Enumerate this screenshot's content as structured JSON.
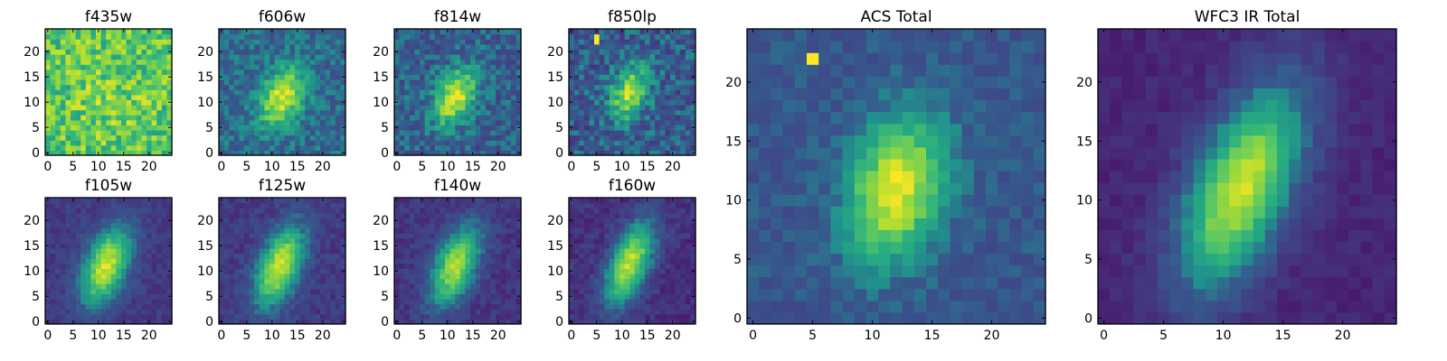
{
  "chart_data": [
    {
      "type": "heatmap",
      "title": "f435w",
      "xlim": [
        0,
        24
      ],
      "ylim": [
        0,
        24
      ],
      "xticks": [
        0,
        5,
        10,
        15,
        20
      ],
      "yticks": [
        0,
        5,
        10,
        15,
        20
      ],
      "xtick_labels": [
        "0",
        "5",
        "10",
        "15",
        "20"
      ],
      "ytick_labels": [
        "0",
        "5",
        "10",
        "15",
        "20"
      ],
      "colormap": "viridis",
      "source": {
        "cx": 12,
        "cy": 11,
        "sx": 8,
        "sy": 8,
        "rho": 0.0,
        "amp": 0.08,
        "bg": 0.72,
        "noise": 0.18,
        "seed": 11
      }
    },
    {
      "type": "heatmap",
      "title": "f606w",
      "xlim": [
        0,
        24
      ],
      "ylim": [
        0,
        24
      ],
      "xticks": [
        0,
        5,
        10,
        15,
        20
      ],
      "yticks": [
        0,
        5,
        10,
        15,
        20
      ],
      "xtick_labels": [
        "0",
        "5",
        "10",
        "15",
        "20"
      ],
      "ytick_labels": [
        "0",
        "5",
        "10",
        "15",
        "20"
      ],
      "colormap": "viridis",
      "source": {
        "cx": 12,
        "cy": 11,
        "sx": 3.2,
        "sy": 4.2,
        "rho": 0.35,
        "amp": 0.55,
        "bg": 0.4,
        "noise": 0.11,
        "seed": 23
      }
    },
    {
      "type": "heatmap",
      "title": "f814w",
      "xlim": [
        0,
        24
      ],
      "ylim": [
        0,
        24
      ],
      "xticks": [
        0,
        5,
        10,
        15,
        20
      ],
      "yticks": [
        0,
        5,
        10,
        15,
        20
      ],
      "xtick_labels": [
        "0",
        "5",
        "10",
        "15",
        "20"
      ],
      "ytick_labels": [
        "0",
        "5",
        "10",
        "15",
        "20"
      ],
      "colormap": "viridis",
      "source": {
        "cx": 11.5,
        "cy": 11,
        "sx": 3.0,
        "sy": 4.0,
        "rho": 0.35,
        "amp": 0.58,
        "bg": 0.36,
        "noise": 0.13,
        "seed": 37
      }
    },
    {
      "type": "heatmap",
      "title": "f850lp",
      "xlim": [
        0,
        24
      ],
      "ylim": [
        0,
        24
      ],
      "xticks": [
        0,
        5,
        10,
        15,
        20
      ],
      "yticks": [
        0,
        5,
        10,
        15,
        20
      ],
      "xtick_labels": [
        "0",
        "5",
        "10",
        "15",
        "20"
      ],
      "ytick_labels": [
        "0",
        "5",
        "10",
        "15",
        "20"
      ],
      "colormap": "viridis",
      "source": {
        "cx": 11.5,
        "cy": 12,
        "sx": 2.8,
        "sy": 4.0,
        "rho": 0.3,
        "amp": 0.52,
        "bg": 0.34,
        "noise": 0.15,
        "seed": 41,
        "hot": [
          [
            5,
            22
          ],
          [
            5,
            23
          ]
        ]
      }
    },
    {
      "type": "heatmap",
      "title": "f105w",
      "xlim": [
        0,
        24
      ],
      "ylim": [
        0,
        24
      ],
      "xticks": [
        0,
        5,
        10,
        15,
        20
      ],
      "yticks": [
        0,
        5,
        10,
        15,
        20
      ],
      "xtick_labels": [
        "0",
        "5",
        "10",
        "15",
        "20"
      ],
      "ytick_labels": [
        "0",
        "5",
        "10",
        "15",
        "20"
      ],
      "colormap": "viridis",
      "source": {
        "cx": 11.5,
        "cy": 11,
        "sx": 3.4,
        "sy": 5.4,
        "rho": 0.45,
        "amp": 0.72,
        "bg": 0.22,
        "noise": 0.06,
        "seed": 53
      }
    },
    {
      "type": "heatmap",
      "title": "f125w",
      "xlim": [
        0,
        24
      ],
      "ylim": [
        0,
        24
      ],
      "xticks": [
        0,
        5,
        10,
        15,
        20
      ],
      "yticks": [
        0,
        5,
        10,
        15,
        20
      ],
      "xtick_labels": [
        "0",
        "5",
        "10",
        "15",
        "20"
      ],
      "ytick_labels": [
        "0",
        "5",
        "10",
        "15",
        "20"
      ],
      "colormap": "viridis",
      "source": {
        "cx": 11.5,
        "cy": 11,
        "sx": 3.4,
        "sy": 5.6,
        "rho": 0.5,
        "amp": 0.72,
        "bg": 0.22,
        "noise": 0.07,
        "seed": 61
      }
    },
    {
      "type": "heatmap",
      "title": "f140w",
      "xlim": [
        0,
        24
      ],
      "ylim": [
        0,
        24
      ],
      "xticks": [
        0,
        5,
        10,
        15,
        20
      ],
      "yticks": [
        0,
        5,
        10,
        15,
        20
      ],
      "xtick_labels": [
        "0",
        "5",
        "10",
        "15",
        "20"
      ],
      "ytick_labels": [
        "0",
        "5",
        "10",
        "15",
        "20"
      ],
      "colormap": "viridis",
      "source": {
        "cx": 11.5,
        "cy": 11,
        "sx": 3.5,
        "sy": 5.6,
        "rho": 0.5,
        "amp": 0.68,
        "bg": 0.2,
        "noise": 0.07,
        "seed": 71
      }
    },
    {
      "type": "heatmap",
      "title": "f160w",
      "xlim": [
        0,
        24
      ],
      "ylim": [
        0,
        24
      ],
      "xticks": [
        0,
        5,
        10,
        15,
        20
      ],
      "yticks": [
        0,
        5,
        10,
        15,
        20
      ],
      "xtick_labels": [
        "0",
        "5",
        "10",
        "15",
        "20"
      ],
      "ytick_labels": [
        "0",
        "5",
        "10",
        "15",
        "20"
      ],
      "colormap": "viridis",
      "source": {
        "cx": 11.5,
        "cy": 11.5,
        "sx": 3.4,
        "sy": 5.8,
        "rho": 0.55,
        "amp": 0.74,
        "bg": 0.18,
        "noise": 0.07,
        "seed": 83
      }
    },
    {
      "type": "heatmap",
      "title": "ACS Total",
      "xlim": [
        0,
        24
      ],
      "ylim": [
        0,
        24
      ],
      "xticks": [
        0,
        5,
        10,
        15,
        20
      ],
      "yticks": [
        0,
        5,
        10,
        15,
        20
      ],
      "xtick_labels": [
        "0",
        "5",
        "10",
        "15",
        "20"
      ],
      "ytick_labels": [
        "0",
        "5",
        "10",
        "15",
        "20"
      ],
      "colormap": "viridis",
      "source": {
        "cx": 12,
        "cy": 11,
        "sx": 2.8,
        "sy": 4.2,
        "rho": 0.25,
        "amp": 0.64,
        "bg": 0.34,
        "noise": 0.07,
        "seed": 97,
        "hot": [
          [
            5,
            22
          ]
        ]
      }
    },
    {
      "type": "heatmap",
      "title": "WFC3 IR Total",
      "xlim": [
        0,
        24
      ],
      "ylim": [
        0,
        24
      ],
      "xticks": [
        0,
        5,
        10,
        15,
        20
      ],
      "yticks": [
        0,
        5,
        10,
        15,
        20
      ],
      "xtick_labels": [
        "0",
        "5",
        "10",
        "15",
        "20"
      ],
      "ytick_labels": [
        "0",
        "5",
        "10",
        "15",
        "20"
      ],
      "colormap": "viridis",
      "source": {
        "cx": 11.5,
        "cy": 11,
        "sx": 3.6,
        "sy": 6.0,
        "rho": 0.55,
        "amp": 0.8,
        "bg": 0.14,
        "noise": 0.045,
        "seed": 109
      }
    }
  ]
}
